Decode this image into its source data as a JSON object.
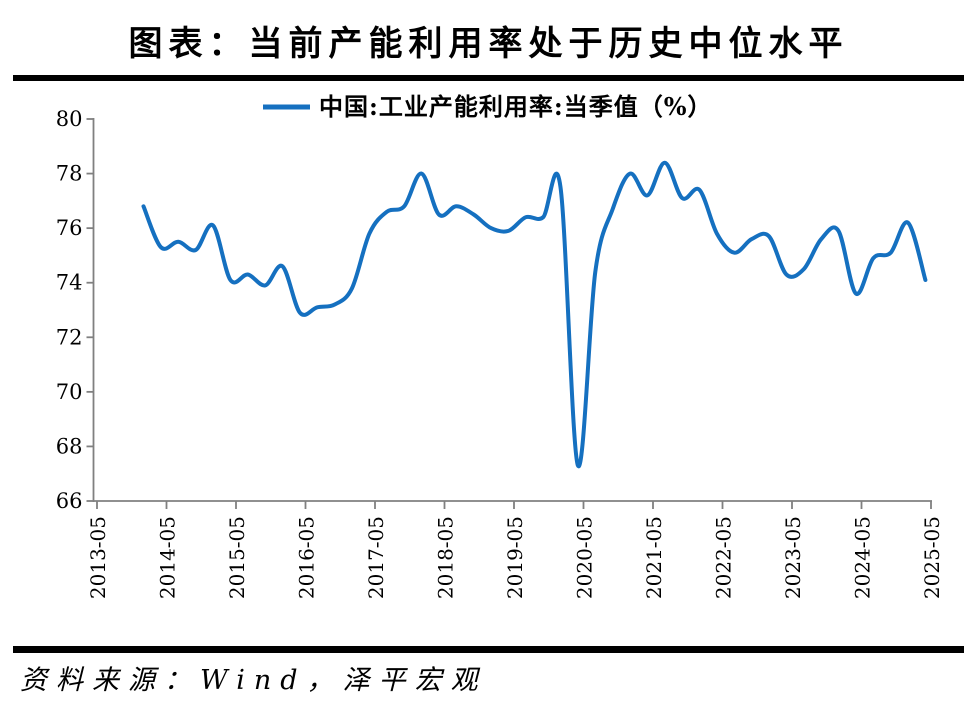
{
  "page": {
    "title": "图表：当前产能利用率处于历史中位水平",
    "source": "资料来源：Wind，泽平宏观"
  },
  "legend": {
    "label": "中国:工业产能利用率:当季值（%）"
  },
  "colors": {
    "line": "#1570C0",
    "axis": "#808080",
    "text": "#000000",
    "rule": "#000000",
    "background": "#FFFFFF"
  },
  "chart_data": {
    "type": "line",
    "title": "图表：当前产能利用率处于历史中位水平",
    "xlabel": "",
    "ylabel": "",
    "grid": false,
    "smooth": true,
    "legend_position": "top",
    "ylim": [
      66,
      80
    ],
    "y_ticks": [
      80,
      78,
      76,
      74,
      72,
      70,
      68,
      66
    ],
    "x_ticks": [
      "2013-05",
      "2014-05",
      "2015-05",
      "2016-05",
      "2017-05",
      "2018-05",
      "2019-05",
      "2020-05",
      "2021-05",
      "2022-05",
      "2023-05",
      "2024-05",
      "2025-05"
    ],
    "series": [
      {
        "name": "中国:工业产能利用率:当季值（%）",
        "x": [
          "2013-12",
          "2014-03",
          "2014-06",
          "2014-09",
          "2014-12",
          "2015-03",
          "2015-06",
          "2015-09",
          "2015-12",
          "2016-03",
          "2016-06",
          "2016-09",
          "2016-12",
          "2017-03",
          "2017-06",
          "2017-09",
          "2017-12",
          "2018-03",
          "2018-06",
          "2018-09",
          "2018-12",
          "2019-03",
          "2019-06",
          "2019-09",
          "2019-12",
          "2020-03",
          "2020-06",
          "2020-09",
          "2020-12",
          "2021-03",
          "2021-06",
          "2021-09",
          "2021-12",
          "2022-03",
          "2022-06",
          "2022-09",
          "2022-12",
          "2023-03",
          "2023-06",
          "2023-09",
          "2023-12",
          "2024-03",
          "2024-06",
          "2024-09",
          "2024-12",
          "2025-03"
        ],
        "values": [
          76.8,
          75.3,
          75.5,
          75.2,
          76.1,
          74.1,
          74.3,
          73.9,
          74.6,
          72.9,
          73.1,
          73.2,
          73.8,
          75.8,
          76.6,
          76.8,
          78.0,
          76.5,
          76.8,
          76.5,
          76.0,
          75.9,
          76.4,
          76.4,
          77.5,
          67.3,
          74.4,
          76.7,
          78.0,
          77.2,
          78.4,
          77.1,
          77.4,
          75.8,
          75.1,
          75.6,
          75.7,
          74.3,
          74.5,
          75.6,
          75.9,
          73.6,
          74.9,
          75.1,
          76.2,
          74.1
        ]
      }
    ]
  }
}
